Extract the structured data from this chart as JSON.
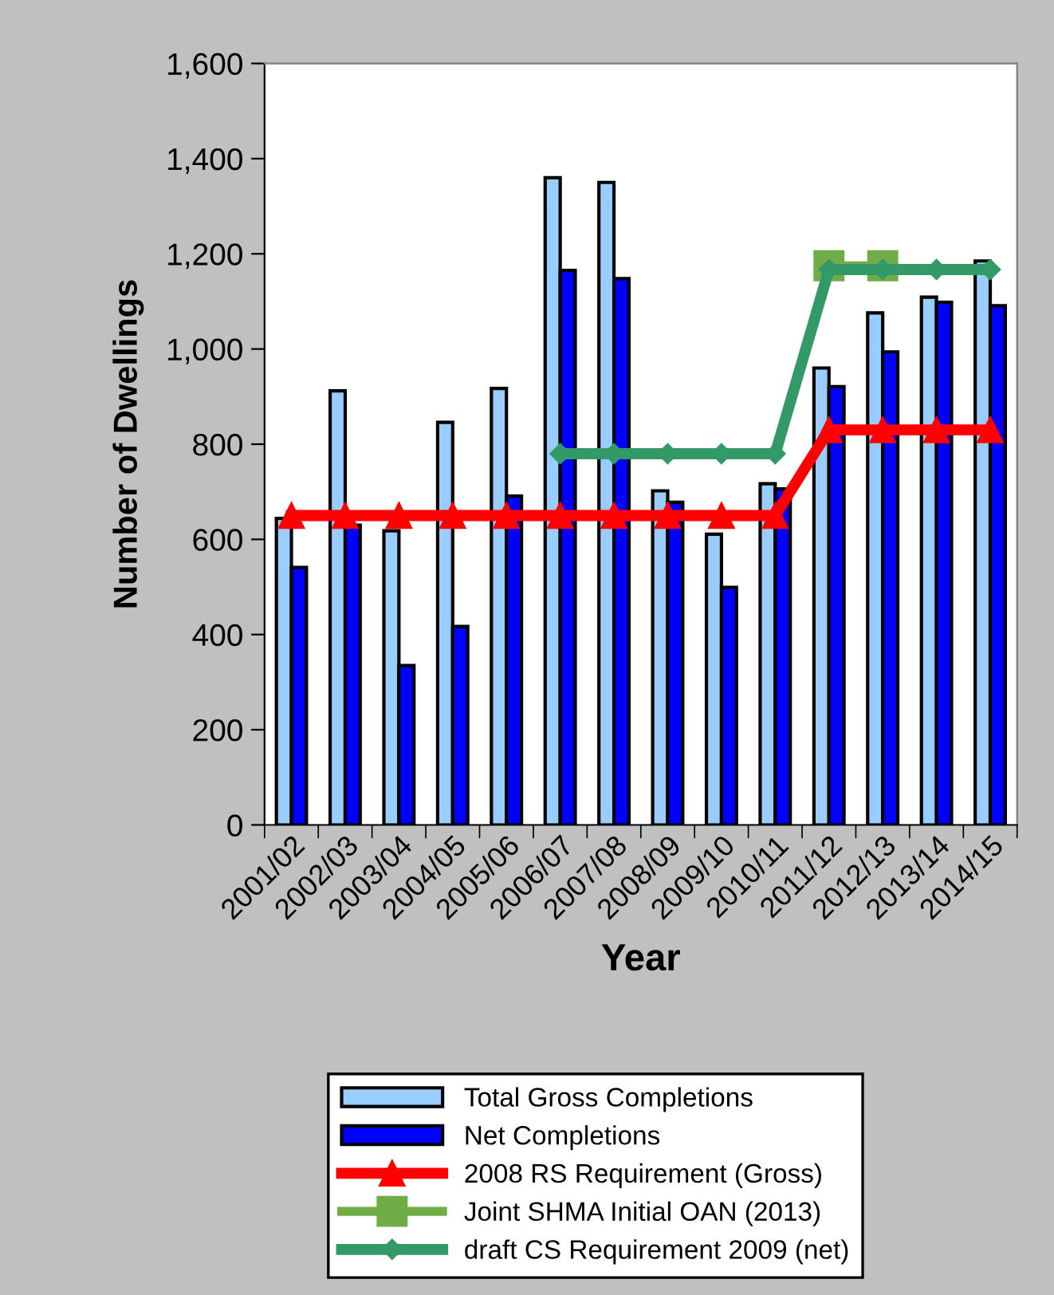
{
  "chart_data": {
    "type": "bar",
    "xlabel": "Year",
    "ylabel": "Number of Dwellings",
    "categories": [
      "2001/02",
      "2002/03",
      "2003/04",
      "2004/05",
      "2005/06",
      "2006/07",
      "2007/08",
      "2008/09",
      "2009/10",
      "2010/11",
      "2011/12",
      "2012/13",
      "2013/14",
      "2014/15"
    ],
    "series": [
      {
        "name": "Total Gross Completions",
        "color": "#99ccff",
        "values": [
          644,
          912,
          618,
          846,
          917,
          1360,
          1350,
          702,
          611,
          717,
          960,
          1076,
          1109,
          1185
        ]
      },
      {
        "name": "Net Completions",
        "color": "#0000ff",
        "values": [
          541,
          630,
          335,
          417,
          691,
          1165,
          1148,
          678,
          499,
          706,
          921,
          994,
          1098,
          1091
        ]
      },
      {
        "name": "2008 RS Requirement (Gross)",
        "type": "line",
        "marker": "triangle",
        "color": "#ff0000",
        "values": [
          650,
          650,
          650,
          650,
          650,
          650,
          650,
          650,
          650,
          650,
          830,
          830,
          830,
          830
        ]
      },
      {
        "name": "Joint SHMA Initial OAN (2013)",
        "type": "line",
        "marker": "square",
        "color": "#70ad47",
        "values": [
          null,
          null,
          null,
          null,
          null,
          null,
          null,
          null,
          null,
          null,
          1175,
          1175,
          null,
          null
        ]
      },
      {
        "name": "draft CS Requirement 2009 (net)",
        "type": "line",
        "marker": "diamond",
        "color": "#339966",
        "values": [
          null,
          null,
          null,
          null,
          null,
          780,
          780,
          780,
          780,
          780,
          1167,
          1167,
          1167,
          1167
        ]
      }
    ],
    "ylim": [
      0,
      1600
    ],
    "yticks": [
      {
        "value": 0,
        "label": "0"
      },
      {
        "value": 200,
        "label": "200"
      },
      {
        "value": 400,
        "label": "400"
      },
      {
        "value": 600,
        "label": "600"
      },
      {
        "value": 800,
        "label": "800"
      },
      {
        "value": 1000,
        "label": "1,000"
      },
      {
        "value": 1200,
        "label": "1,200"
      },
      {
        "value": 1400,
        "label": "1,400"
      },
      {
        "value": 1600,
        "label": "1,600"
      }
    ],
    "grid": false,
    "legend": "bottom"
  }
}
